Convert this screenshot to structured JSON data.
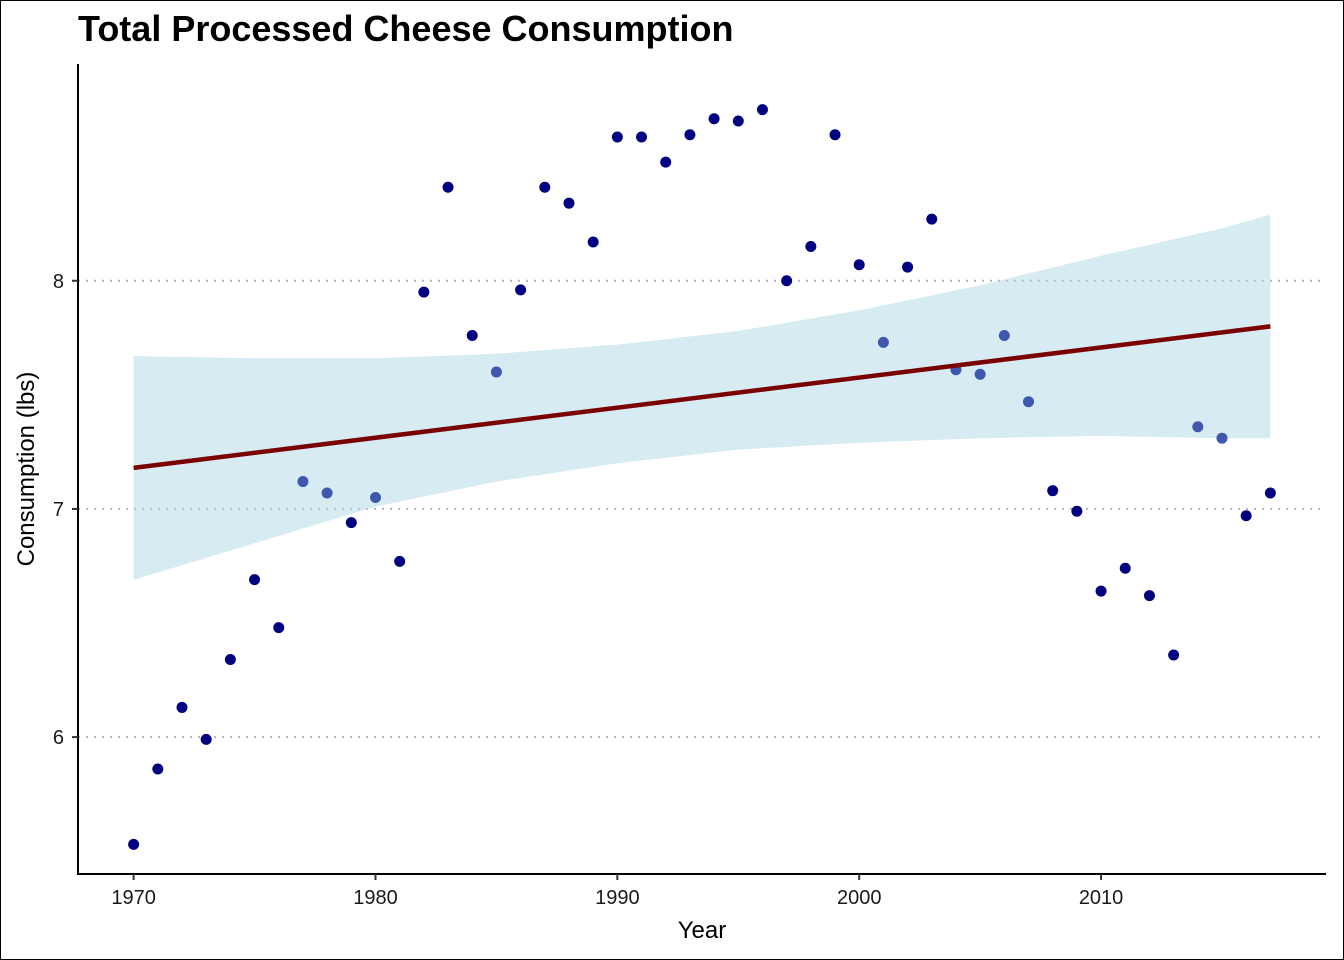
{
  "chart_data": {
    "type": "scatter",
    "title": "Total Processed Cheese Consumption",
    "xlabel": "Year",
    "ylabel": "Consumption (lbs)",
    "xlim": [
      1967.7,
      2019.3
    ],
    "ylim": [
      5.4,
      8.95
    ],
    "x_ticks": [
      1970,
      1980,
      1990,
      2000,
      2010
    ],
    "y_ticks": [
      6,
      7,
      8
    ],
    "grid": "horizontal dotted at y ticks",
    "colors": {
      "points": "#000080",
      "points_in_band": "#3f57ad",
      "trend_line": "#7a0000",
      "confidence_band": "#add8e6",
      "grid": "#b3b3b3"
    },
    "points": [
      {
        "x": 1970,
        "y": 5.53
      },
      {
        "x": 1971,
        "y": 5.86
      },
      {
        "x": 1972,
        "y": 6.13
      },
      {
        "x": 1973,
        "y": 5.99
      },
      {
        "x": 1974,
        "y": 6.34
      },
      {
        "x": 1975,
        "y": 6.69
      },
      {
        "x": 1976,
        "y": 6.48
      },
      {
        "x": 1977,
        "y": 7.12
      },
      {
        "x": 1978,
        "y": 7.07
      },
      {
        "x": 1979,
        "y": 6.94
      },
      {
        "x": 1980,
        "y": 7.05
      },
      {
        "x": 1981,
        "y": 6.77
      },
      {
        "x": 1982,
        "y": 7.95
      },
      {
        "x": 1983,
        "y": 8.41
      },
      {
        "x": 1984,
        "y": 7.76
      },
      {
        "x": 1985,
        "y": 7.6
      },
      {
        "x": 1986,
        "y": 7.96
      },
      {
        "x": 1987,
        "y": 8.41
      },
      {
        "x": 1988,
        "y": 8.34
      },
      {
        "x": 1989,
        "y": 8.17
      },
      {
        "x": 1990,
        "y": 8.63
      },
      {
        "x": 1991,
        "y": 8.63
      },
      {
        "x": 1992,
        "y": 8.52
      },
      {
        "x": 1993,
        "y": 8.64
      },
      {
        "x": 1994,
        "y": 8.71
      },
      {
        "x": 1995,
        "y": 8.7
      },
      {
        "x": 1996,
        "y": 8.75
      },
      {
        "x": 1997,
        "y": 8.0
      },
      {
        "x": 1998,
        "y": 8.15
      },
      {
        "x": 1999,
        "y": 8.64
      },
      {
        "x": 2000,
        "y": 8.07
      },
      {
        "x": 2001,
        "y": 7.73
      },
      {
        "x": 2002,
        "y": 8.06
      },
      {
        "x": 2003,
        "y": 8.27
      },
      {
        "x": 2004,
        "y": 7.61
      },
      {
        "x": 2005,
        "y": 7.59
      },
      {
        "x": 2006,
        "y": 7.76
      },
      {
        "x": 2007,
        "y": 7.47
      },
      {
        "x": 2008,
        "y": 7.08
      },
      {
        "x": 2009,
        "y": 6.99
      },
      {
        "x": 2010,
        "y": 6.64
      },
      {
        "x": 2011,
        "y": 6.74
      },
      {
        "x": 2012,
        "y": 6.62
      },
      {
        "x": 2013,
        "y": 6.36
      },
      {
        "x": 2014,
        "y": 7.36
      },
      {
        "x": 2015,
        "y": 7.31
      },
      {
        "x": 2016,
        "y": 6.97
      },
      {
        "x": 2017,
        "y": 7.07
      }
    ],
    "trend_line": {
      "x": [
        1970,
        2017
      ],
      "y": [
        7.18,
        7.8
      ]
    },
    "confidence_band": {
      "x": [
        1970,
        1975,
        1980,
        1985,
        1990,
        1995,
        2000,
        2005,
        2010,
        2015,
        2017
      ],
      "lower": [
        6.69,
        6.85,
        7.01,
        7.12,
        7.2,
        7.26,
        7.29,
        7.31,
        7.32,
        7.31,
        7.31
      ],
      "upper": [
        7.67,
        7.66,
        7.66,
        7.68,
        7.72,
        7.78,
        7.87,
        7.98,
        8.11,
        8.23,
        8.29
      ]
    }
  }
}
